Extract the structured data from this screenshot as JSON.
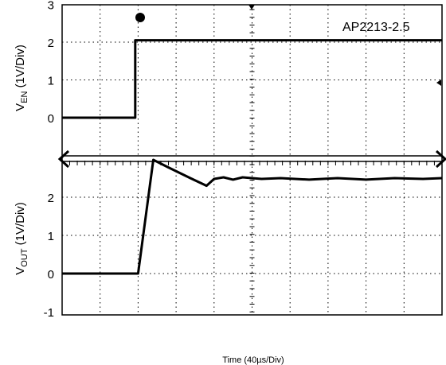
{
  "chart_data": [
    {
      "type": "line",
      "title": "",
      "annotation": "AP2213-2.5",
      "trigger_marker": "T",
      "xlabel": "Time (40µs/Div)",
      "ylabel_main": "V",
      "ylabel_sub": "EN",
      "ylabel_rest": " (1V/Div)",
      "ylim": [
        -0.3,
        3
      ],
      "yticks": [
        "3",
        "2",
        "1",
        "0"
      ],
      "grid": true,
      "series": [
        {
          "points": [
            [
              0,
              0.0
            ],
            [
              77,
              0.0
            ],
            [
              77,
              2.05
            ],
            [
              400,
              2.05
            ]
          ]
        }
      ]
    },
    {
      "type": "line",
      "title": "",
      "xlabel": "Time (40µs/Div)",
      "ylabel_main": "V",
      "ylabel_sub": "OUT",
      "ylabel_rest": " (1V/Div)",
      "ylim": [
        -1,
        2.95
      ],
      "yticks": [
        "2",
        "1",
        "0",
        "-1"
      ],
      "grid": true,
      "series": [
        {
          "points": [
            [
              0,
              0.0
            ],
            [
              80,
              0.0
            ],
            [
              96,
              2.98
            ],
            [
              112,
              2.78
            ],
            [
              135,
              2.5
            ],
            [
              152,
              2.3
            ],
            [
              160,
              2.48
            ],
            [
              170,
              2.52
            ],
            [
              180,
              2.46
            ],
            [
              190,
              2.52
            ],
            [
              210,
              2.48
            ],
            [
              230,
              2.5
            ],
            [
              260,
              2.46
            ],
            [
              290,
              2.5
            ],
            [
              320,
              2.46
            ],
            [
              350,
              2.5
            ],
            [
              380,
              2.48
            ],
            [
              400,
              2.5
            ]
          ]
        }
      ]
    }
  ]
}
